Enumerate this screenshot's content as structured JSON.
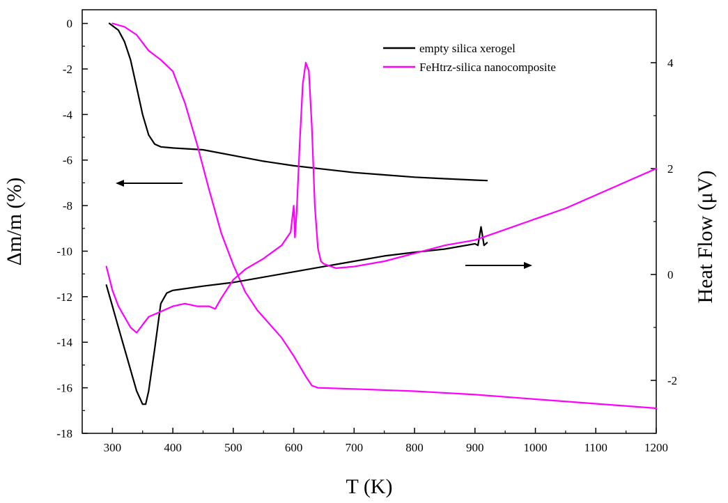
{
  "chart_data": {
    "type": "line",
    "title": "",
    "xlabel": "T (K)",
    "ylabel_left": "Δm/m (%)",
    "ylabel_right": "Heat Flow (μV)",
    "xlim": [
      250,
      1200
    ],
    "ylim_left": [
      -18,
      0.6
    ],
    "ylim_right": [
      -3.0,
      5.0
    ],
    "x_ticks": [
      300,
      400,
      500,
      600,
      700,
      800,
      900,
      1000,
      1100,
      1200
    ],
    "y_left_ticks": [
      0,
      -2,
      -4,
      -6,
      -8,
      -10,
      -12,
      -14,
      -16,
      -18
    ],
    "y_right_ticks": [
      4,
      2,
      0,
      -2
    ],
    "grid": false,
    "legend_position": "top-right",
    "series": [
      {
        "name": "empty silica xerogel",
        "color": "#000000",
        "axis": "left",
        "kind": "mass-loss",
        "x": [
          295,
          310,
          320,
          330,
          340,
          350,
          360,
          370,
          380,
          400,
          450,
          500,
          550,
          600,
          650,
          700,
          750,
          800,
          850,
          900,
          920
        ],
        "y": [
          0,
          -0.3,
          -0.8,
          -1.6,
          -2.8,
          -4.0,
          -4.9,
          -5.3,
          -5.42,
          -5.47,
          -5.55,
          -5.8,
          -6.05,
          -6.25,
          -6.4,
          -6.55,
          -6.65,
          -6.75,
          -6.82,
          -6.88,
          -6.9
        ]
      },
      {
        "name": "FeHtrz-silica nanocomposite",
        "color": "#ff00ff",
        "axis": "left",
        "kind": "mass-loss",
        "x": [
          300,
          320,
          340,
          360,
          380,
          400,
          420,
          440,
          460,
          480,
          500,
          520,
          540,
          560,
          580,
          600,
          620,
          630,
          640,
          700,
          800,
          900,
          1000,
          1100,
          1200
        ],
        "y": [
          0,
          -0.15,
          -0.5,
          -1.2,
          -1.6,
          -2.1,
          -3.5,
          -5.3,
          -7.3,
          -9.2,
          -10.6,
          -11.8,
          -12.6,
          -13.2,
          -13.8,
          -14.6,
          -15.5,
          -15.9,
          -16.0,
          -16.05,
          -16.15,
          -16.3,
          -16.5,
          -16.7,
          -16.9
        ]
      },
      {
        "name": "empty silica xerogel",
        "color": "#000000",
        "axis": "right",
        "kind": "heat-flow",
        "x": [
          290,
          300,
          310,
          320,
          330,
          340,
          350,
          355,
          360,
          370,
          380,
          390,
          400,
          450,
          500,
          550,
          600,
          650,
          700,
          750,
          800,
          850,
          900,
          905,
          910,
          915,
          920
        ],
        "y": [
          -0.2,
          -0.6,
          -1.0,
          -1.4,
          -1.8,
          -2.2,
          -2.45,
          -2.45,
          -2.2,
          -1.4,
          -0.55,
          -0.35,
          -0.3,
          -0.22,
          -0.15,
          -0.05,
          0.05,
          0.15,
          0.25,
          0.35,
          0.42,
          0.48,
          0.58,
          0.55,
          0.9,
          0.55,
          0.6
        ]
      },
      {
        "name": "FeHtrz-silica nanocomposite",
        "color": "#ff00ff",
        "axis": "right",
        "kind": "heat-flow",
        "x": [
          290,
          300,
          310,
          320,
          330,
          340,
          350,
          360,
          380,
          400,
          420,
          440,
          460,
          470,
          480,
          500,
          520,
          550,
          580,
          595,
          600,
          602,
          605,
          610,
          615,
          620,
          625,
          630,
          635,
          640,
          645,
          650,
          670,
          700,
          750,
          800,
          850,
          900,
          950,
          1000,
          1050,
          1100,
          1150,
          1200
        ],
        "y": [
          0.15,
          -0.3,
          -0.6,
          -0.8,
          -1.0,
          -1.1,
          -0.95,
          -0.8,
          -0.7,
          -0.6,
          -0.55,
          -0.6,
          -0.6,
          -0.65,
          -0.45,
          -0.1,
          0.1,
          0.3,
          0.55,
          0.8,
          1.3,
          0.7,
          1.2,
          2.5,
          3.6,
          4.0,
          3.85,
          2.8,
          1.3,
          0.5,
          0.25,
          0.2,
          0.12,
          0.15,
          0.25,
          0.4,
          0.55,
          0.65,
          0.85,
          1.05,
          1.25,
          1.5,
          1.75,
          2.0
        ]
      }
    ]
  }
}
